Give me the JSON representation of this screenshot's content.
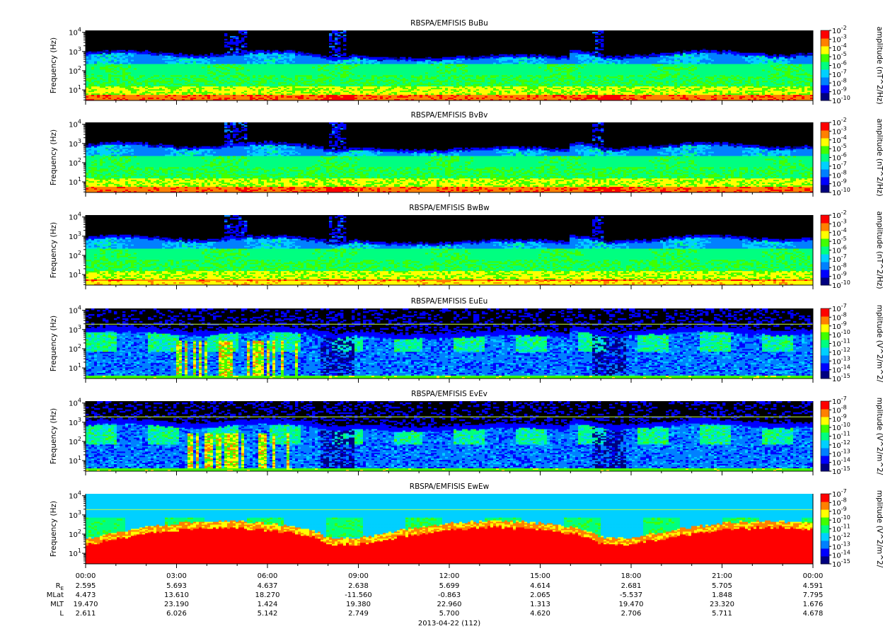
{
  "chart_data": [
    {
      "type": "heatmap",
      "title": "RBSPA/EMFISIS  BuBu",
      "ylabel": "Frequency (Hz)",
      "yscale": "log",
      "y_ticks": [
        "10^1",
        "10^2",
        "10^3",
        "10^4"
      ],
      "colorbar_label": "amplitude (nT^2/Hz)",
      "colorbar_ticks": [
        "10^-2",
        "10^-3",
        "10^-4",
        "10^-5",
        "10^-6",
        "10^-7",
        "10^-8",
        "10^-9",
        "10^-10"
      ],
      "colormap": [
        "#000080",
        "#0000ff",
        "#0080ff",
        "#00d0ff",
        "#00ff80",
        "#40ff00",
        "#ffff00",
        "#ff8000",
        "#ff0000"
      ],
      "background_color": "#000000",
      "noise_floor_color": "#0000ff",
      "kind": "B"
    },
    {
      "type": "heatmap",
      "title": "RBSPA/EMFISIS  BvBv",
      "ylabel": "Frequency (Hz)",
      "yscale": "log",
      "y_ticks": [
        "10^1",
        "10^2",
        "10^3",
        "10^4"
      ],
      "colorbar_label": "amplitude (nT^2/Hz)",
      "colorbar_ticks": [
        "10^-2",
        "10^-3",
        "10^-4",
        "10^-5",
        "10^-6",
        "10^-7",
        "10^-8",
        "10^-9",
        "10^-10"
      ],
      "colormap": [
        "#000080",
        "#0000ff",
        "#0080ff",
        "#00d0ff",
        "#00ff80",
        "#40ff00",
        "#ffff00",
        "#ff8000",
        "#ff0000"
      ],
      "background_color": "#000000",
      "noise_floor_color": "#0000ff",
      "kind": "B"
    },
    {
      "type": "heatmap",
      "title": "RBSPA/EMFISIS  BwBw",
      "ylabel": "Frequency (Hz)",
      "yscale": "log",
      "y_ticks": [
        "10^1",
        "10^2",
        "10^3",
        "10^4"
      ],
      "colorbar_label": "amplitude (nT^2/Hz)",
      "colorbar_ticks": [
        "10^-2",
        "10^-3",
        "10^-4",
        "10^-5",
        "10^-6",
        "10^-7",
        "10^-8",
        "10^-9",
        "10^-10"
      ],
      "colormap": [
        "#000080",
        "#0000ff",
        "#0080ff",
        "#00d0ff",
        "#00ff80",
        "#40ff00",
        "#ffff00",
        "#ff8000",
        "#ff0000"
      ],
      "background_color": "#000000",
      "noise_floor_color": "#0000ff",
      "kind": "Bw"
    },
    {
      "type": "heatmap",
      "title": "RBSPA/EMFISIS  EuEu",
      "ylabel": "Frequency (Hz)",
      "yscale": "log",
      "y_ticks": [
        "10^1",
        "10^2",
        "10^3",
        "10^4"
      ],
      "colorbar_label": "mplitude (V^2/m^2/",
      "colorbar_ticks": [
        "10^-7",
        "10^-8",
        "10^-9",
        "10^-10",
        "10^-11",
        "10^-12",
        "10^-13",
        "10^-14",
        "10^-15"
      ],
      "colormap": [
        "#000080",
        "#0000ff",
        "#0080ff",
        "#00d0ff",
        "#00ff80",
        "#40ff00",
        "#ffff00",
        "#ff8000",
        "#ff0000"
      ],
      "background_color": "#000000",
      "noise_floor_color": "#0000ff",
      "kind": "E"
    },
    {
      "type": "heatmap",
      "title": "RBSPA/EMFISIS  EvEv",
      "ylabel": "Frequency (Hz)",
      "yscale": "log",
      "y_ticks": [
        "10^1",
        "10^2",
        "10^3",
        "10^4"
      ],
      "colorbar_label": "mplitude (V^2/m^2/",
      "colorbar_ticks": [
        "10^-7",
        "10^-8",
        "10^-9",
        "10^-10",
        "10^-11",
        "10^-12",
        "10^-13",
        "10^-14",
        "10^-15"
      ],
      "colormap": [
        "#000080",
        "#0000ff",
        "#0080ff",
        "#00d0ff",
        "#00ff80",
        "#40ff00",
        "#ffff00",
        "#ff8000",
        "#ff0000"
      ],
      "background_color": "#000000",
      "noise_floor_color": "#0000ff",
      "kind": "E"
    },
    {
      "type": "heatmap",
      "title": "RBSPA/EMFISIS  EwEw",
      "ylabel": "Frequency (Hz)",
      "yscale": "log",
      "y_ticks": [
        "10^1",
        "10^2",
        "10^3",
        "10^4"
      ],
      "colorbar_label": "mplitude (V^2/m^2/",
      "colorbar_ticks": [
        "10^-7",
        "10^-8",
        "10^-9",
        "10^-10",
        "10^-11",
        "10^-12",
        "10^-13",
        "10^-14",
        "10^-15"
      ],
      "colormap": [
        "#000080",
        "#0000ff",
        "#0080ff",
        "#00d0ff",
        "#00ff80",
        "#40ff00",
        "#ffff00",
        "#ff8000",
        "#ff0000"
      ],
      "background_color": "#000000",
      "noise_floor_color": "#00c8ff",
      "kind": "Ew"
    }
  ],
  "time_axis": {
    "tick_labels": [
      "00:00",
      "03:00",
      "06:00",
      "09:00",
      "12:00",
      "15:00",
      "18:00",
      "21:00",
      "00:00"
    ],
    "date_label": "2013-04-22 (112)"
  },
  "ephemeris": [
    {
      "label_main": "R",
      "label_sub": "E",
      "values": [
        "2.595",
        "5.693",
        "4.637",
        "2.638",
        "5.699",
        "4.614",
        "2.681",
        "5.705",
        "4.591"
      ]
    },
    {
      "label_main": "MLat",
      "label_sub": "",
      "values": [
        "4.473",
        "13.610",
        "18.270",
        "-11.560",
        "-0.863",
        "2.065",
        "-5.537",
        "1.848",
        "7.795"
      ]
    },
    {
      "label_main": "MLT",
      "label_sub": "",
      "values": [
        "19.470",
        "23.190",
        "1.424",
        "19.380",
        "22.960",
        "1.313",
        "19.470",
        "23.320",
        "1.676"
      ]
    },
    {
      "label_main": "L",
      "label_sub": "",
      "values": [
        "2.611",
        "6.026",
        "5.142",
        "2.749",
        "5.700",
        "4.620",
        "2.706",
        "5.711",
        "4.678"
      ]
    }
  ]
}
